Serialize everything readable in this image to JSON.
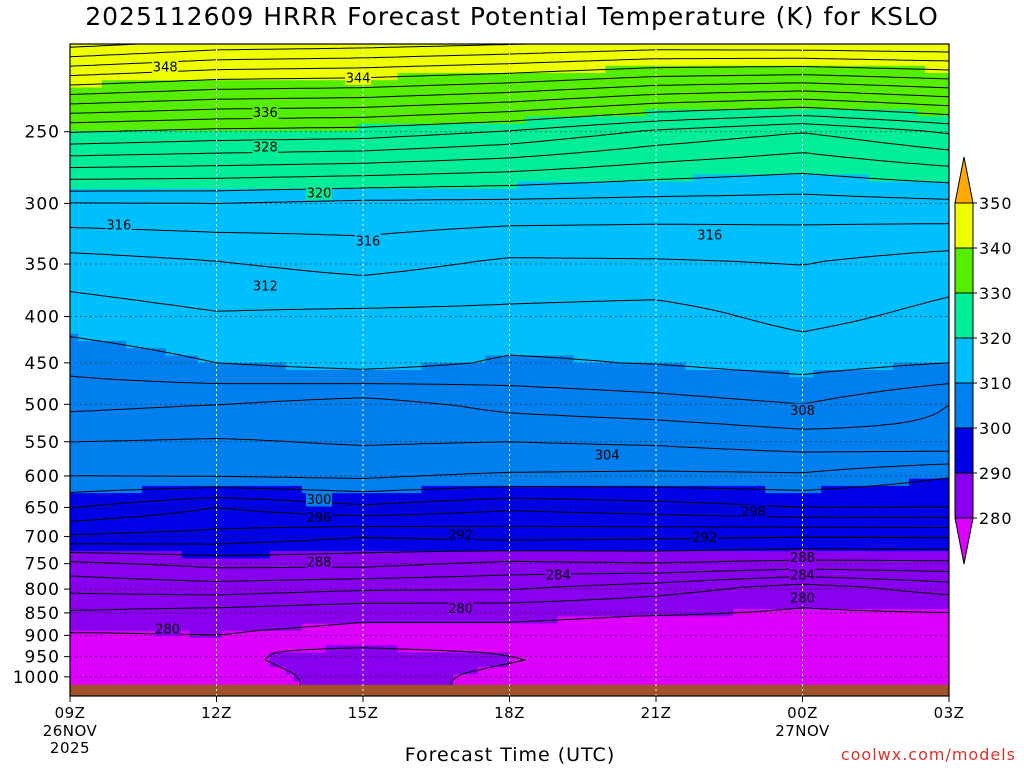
{
  "header": {
    "title": "2025112609 HRRR Forecast Potential Temperature (K) for KSLO"
  },
  "footer": {
    "xlabel": "Forecast Time (UTC)",
    "credit": "coolwx.com/models"
  },
  "chart_data": {
    "type": "contour-filled time-height cross-section",
    "title": "2025112609 HRRR Forecast Potential Temperature (K) for KSLO",
    "xlabel": "Forecast Time (UTC)",
    "ylabel": "",
    "x_ticks": [
      {
        "h": 0,
        "label": "09Z",
        "sub": [
          "26NOV",
          "2025"
        ]
      },
      {
        "h": 3,
        "label": "12Z",
        "sub": []
      },
      {
        "h": 6,
        "label": "15Z",
        "sub": []
      },
      {
        "h": 9,
        "label": "18Z",
        "sub": []
      },
      {
        "h": 12,
        "label": "21Z",
        "sub": []
      },
      {
        "h": 15,
        "label": "00Z",
        "sub": [
          "27NOV"
        ]
      },
      {
        "h": 18,
        "label": "03Z",
        "sub": []
      }
    ],
    "xlim_hours": [
      0,
      18
    ],
    "y_axis": "pressure (hPa), log scale, inverted",
    "y_ticks": [
      250,
      300,
      350,
      400,
      450,
      500,
      550,
      600,
      650,
      700,
      750,
      800,
      850,
      900,
      950,
      1000
    ],
    "ylim": [
      1050,
      200
    ],
    "grid": true,
    "ground_color": "#a0522d",
    "colorbar": {
      "ticks": [
        280,
        290,
        300,
        310,
        320,
        330,
        340,
        350
      ],
      "bands": [
        {
          "from": 270,
          "to": 280,
          "color": "#dd00ff"
        },
        {
          "from": 280,
          "to": 290,
          "color": "#8800ee"
        },
        {
          "from": 290,
          "to": 300,
          "color": "#0000e6"
        },
        {
          "from": 300,
          "to": 310,
          "color": "#0080ee"
        },
        {
          "from": 310,
          "to": 320,
          "color": "#00bfff"
        },
        {
          "from": 320,
          "to": 330,
          "color": "#00ee99"
        },
        {
          "from": 330,
          "to": 340,
          "color": "#55ee00"
        },
        {
          "from": 340,
          "to": 350,
          "color": "#eeff00"
        },
        {
          "from": 350,
          "to": 360,
          "color": "#ffaa00"
        }
      ]
    },
    "contour_interval_K": 2,
    "profile_times_hours": [
      0,
      3,
      6,
      9,
      12,
      15,
      18
    ],
    "profiles": [
      {
        "p": 1000,
        "theta": [
          279.2,
          279.6,
          280.3,
          279.8,
          279.3,
          279.0,
          279.6
        ]
      },
      {
        "p": 950,
        "theta": [
          279.4,
          279.8,
          280.5,
          280.1,
          279.6,
          279.4,
          279.9
        ]
      },
      {
        "p": 900,
        "theta": [
          279.7,
          279.9,
          279.3,
          279.3,
          279.0,
          278.9,
          279.2
        ]
      },
      {
        "p": 850,
        "theta": [
          281.7,
          281.2,
          280.5,
          280.5,
          280.1,
          279.8,
          279.8
        ]
      },
      {
        "p": 800,
        "theta": [
          284.5,
          284.9,
          284.2,
          284.1,
          282.8,
          280.7,
          282.7
        ]
      },
      {
        "p": 750,
        "theta": [
          287.4,
          288.6,
          288.6,
          287.5,
          287.9,
          287.4,
          287.5
        ]
      },
      {
        "p": 700,
        "theta": [
          293.7,
          293.3,
          292.1,
          292.7,
          292.4,
          292.1,
          292.2
        ]
      },
      {
        "p": 650,
        "theta": [
          298.1,
          296.0,
          297.6,
          296.4,
          297.1,
          298.0,
          298.0
        ]
      },
      {
        "p": 600,
        "theta": [
          302.1,
          302.3,
          302.4,
          301.8,
          301.6,
          301.7,
          300.1
        ]
      },
      {
        "p": 550,
        "theta": [
          304.0,
          303.8,
          304.2,
          304.0,
          304.3,
          305.0,
          305.5
        ]
      },
      {
        "p": 500,
        "theta": [
          306.5,
          306.0,
          305.1,
          306.6,
          307.2,
          308.0,
          306.0
        ]
      },
      {
        "p": 450,
        "theta": [
          308.7,
          310.0,
          310.9,
          309.7,
          310.1,
          310.8,
          310.0
        ]
      },
      {
        "p": 400,
        "theta": [
          311.0,
          311.8,
          311.5,
          311.5,
          311.2,
          312.6,
          311.4
        ]
      },
      {
        "p": 350,
        "theta": [
          313.1,
          313.8,
          314.7,
          313.6,
          313.7,
          314.0,
          313.0
        ]
      },
      {
        "p": 300,
        "theta": [
          317.9,
          318.0,
          317.5,
          317.4,
          317.2,
          317.1,
          317.5
        ]
      },
      {
        "p": 250,
        "theta": [
          330.1,
          329.4,
          329.1,
          327.8,
          325.6,
          324.0,
          326.2
        ]
      },
      {
        "p": 200,
        "theta": [
          348.7,
          347.2,
          346.8,
          346.1,
          345.3,
          345.5,
          345.8
        ]
      }
    ],
    "contour_labels": [
      {
        "value": "348",
        "h": 1.95,
        "p": 212
      },
      {
        "value": "344",
        "h": 5.9,
        "p": 218
      },
      {
        "value": "336",
        "h": 4.0,
        "p": 238
      },
      {
        "value": "328",
        "h": 4.0,
        "p": 260
      },
      {
        "value": "320",
        "h": 5.1,
        "p": 292
      },
      {
        "value": "316",
        "h": 1.0,
        "p": 317
      },
      {
        "value": "316",
        "h": 6.1,
        "p": 330
      },
      {
        "value": "316",
        "h": 13.1,
        "p": 325
      },
      {
        "value": "312",
        "h": 4.0,
        "p": 370
      },
      {
        "value": "308",
        "h": 15.0,
        "p": 508
      },
      {
        "value": "304",
        "h": 11.0,
        "p": 569
      },
      {
        "value": "300",
        "h": 5.1,
        "p": 637
      },
      {
        "value": "296",
        "h": 5.1,
        "p": 667
      },
      {
        "value": "298",
        "h": 14.0,
        "p": 657
      },
      {
        "value": "292",
        "h": 8.0,
        "p": 697
      },
      {
        "value": "292",
        "h": 13.0,
        "p": 702
      },
      {
        "value": "288",
        "h": 5.1,
        "p": 747
      },
      {
        "value": "288",
        "h": 15.0,
        "p": 738
      },
      {
        "value": "284",
        "h": 10.0,
        "p": 772
      },
      {
        "value": "284",
        "h": 15.0,
        "p": 772
      },
      {
        "value": "280",
        "h": 8.0,
        "p": 840
      },
      {
        "value": "280",
        "h": 15.0,
        "p": 818
      },
      {
        "value": "280",
        "h": 2.0,
        "p": 886
      }
    ]
  }
}
